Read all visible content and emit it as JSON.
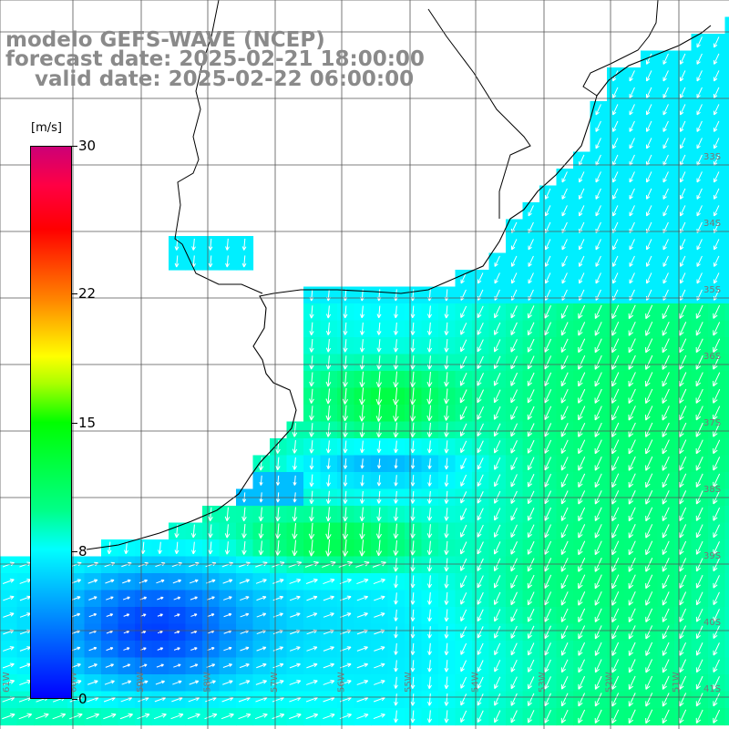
{
  "title": {
    "line1": "modelo GEFS-WAVE (NCEP)",
    "line2": "forecast date: 2025-02-21 18:00:00",
    "line3": "    valid date: 2025-02-22 06:00:00"
  },
  "colorbar": {
    "unit": "[m/s]",
    "ticks": [
      {
        "label": "30",
        "value": 30
      },
      {
        "label": "22",
        "value": 22
      },
      {
        "label": "15",
        "value": 15
      },
      {
        "label": "8",
        "value": 8
      },
      {
        "label": "0",
        "value": 0
      }
    ],
    "range": [
      0,
      30
    ]
  },
  "grid_labels": {
    "longitude": [
      "61W",
      "60W",
      "59W",
      "58W",
      "57W",
      "56W",
      "55W",
      "54W",
      "53W",
      "52W",
      "51W"
    ],
    "latitude": [
      "33S",
      "34S",
      "35S",
      "36S",
      "37S",
      "38S",
      "39S",
      "40S",
      "41S"
    ]
  },
  "colors": {
    "grid": "#555555",
    "land": "#ffffff",
    "coast": "#000000",
    "arrow": "#ffffff",
    "title": "#8a8a8a"
  },
  "chart_data": {
    "type": "heatmap",
    "variable": "wind speed",
    "units": "m/s",
    "value_range": [
      0,
      30
    ],
    "regions": [
      {
        "area": "inner Rio de la Plata / north of 36S",
        "speed_ms": 8
      },
      {
        "area": "offshore east",
        "speed_ms": 9
      },
      {
        "area": "patch near 37S 57.5W",
        "speed_ms": 12
      },
      {
        "area": "patch near 39S 58W",
        "speed_ms": 13
      },
      {
        "area": "southwest near 40S 60W",
        "speed_ms": 2
      }
    ]
  }
}
